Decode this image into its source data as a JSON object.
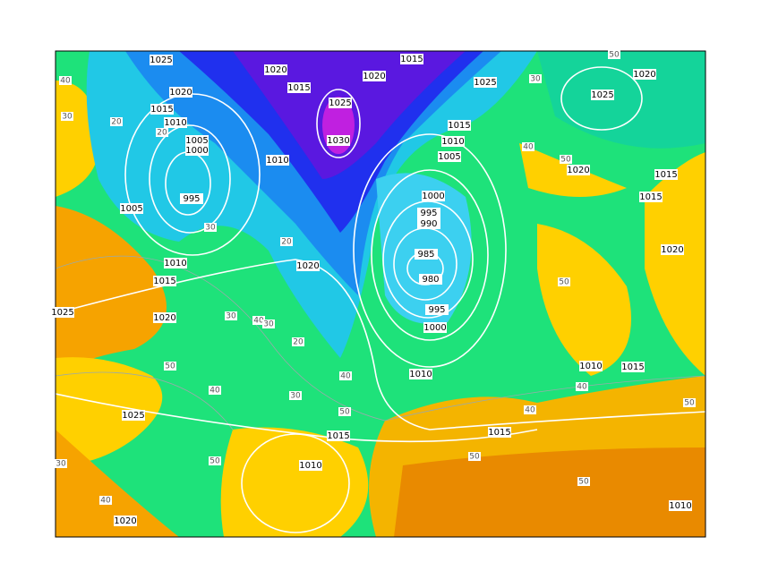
{
  "map": {
    "pressure_labels": [
      "1025",
      "1020",
      "1015",
      "1020",
      "1015",
      "1020",
      "1015",
      "1010",
      "1005",
      "1000",
      "995",
      "1005",
      "1010",
      "1025",
      "1030",
      "1025",
      "1025",
      "1020",
      "1015",
      "1010",
      "1005",
      "1000",
      "995",
      "990",
      "985",
      "980",
      "995",
      "1000",
      "1010",
      "1020",
      "1010",
      "1015",
      "1020",
      "1025",
      "1025",
      "1015",
      "1010",
      "1015",
      "1010",
      "1015",
      "1020",
      "1015",
      "1015",
      "1020",
      "1020",
      "1010"
    ],
    "thickness_labels": [
      "40",
      "30",
      "20",
      "20",
      "50",
      "30",
      "40",
      "50",
      "30",
      "20",
      "30",
      "40",
      "50",
      "40",
      "30",
      "50",
      "40",
      "50",
      "40",
      "50",
      "30",
      "40",
      "50",
      "30",
      "20",
      "40",
      "50",
      "50"
    ]
  }
}
